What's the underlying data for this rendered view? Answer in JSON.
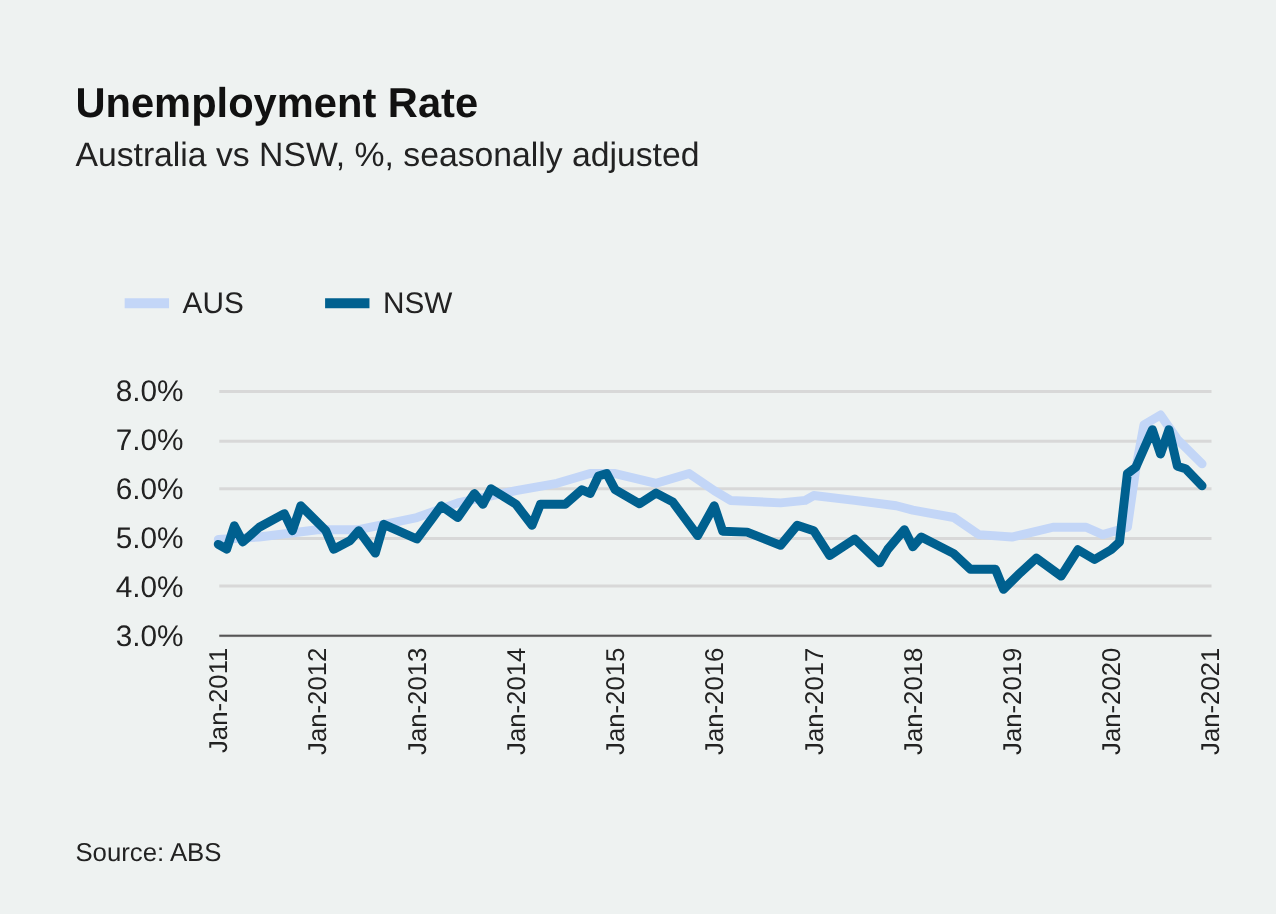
{
  "chart_data": {
    "type": "line",
    "title": "Unemployment Rate",
    "subtitle": "Australia vs NSW, %, seasonally adjusted",
    "annotations": [
      "Source: ABS"
    ],
    "legend": "top left",
    "grid": "y",
    "line_style": "solid",
    "marker": "none",
    "xlim": [
      "2011-01",
      "2021-01"
    ],
    "xticks": [
      {
        "value": "2011-01",
        "label": "Jan-2011"
      },
      {
        "value": "2012-01",
        "label": "Jan-2012"
      },
      {
        "value": "2013-01",
        "label": "Jan-2013"
      },
      {
        "value": "2014-01",
        "label": "Jan-2014"
      },
      {
        "value": "2015-01",
        "label": "Jan-2015"
      },
      {
        "value": "2016-01",
        "label": "Jan-2016"
      },
      {
        "value": "2017-01",
        "label": "Jan-2017"
      },
      {
        "value": "2018-01",
        "label": "Jan-2018"
      },
      {
        "value": "2019-01",
        "label": "Jan-2019"
      },
      {
        "value": "2020-01",
        "label": "Jan-2020"
      },
      {
        "value": "2021-01",
        "label": "Jan-2021"
      }
    ],
    "ylim": [
      3,
      8
    ],
    "yticks": [
      {
        "value": 3,
        "label": "3.0%"
      },
      {
        "value": 4,
        "label": "4.0%"
      },
      {
        "value": 5,
        "label": "5.0%"
      },
      {
        "value": 6,
        "label": "6.0%"
      },
      {
        "value": 7,
        "label": "7.0%"
      },
      {
        "value": 8,
        "label": "8.0%"
      }
    ],
    "series": [
      {
        "name": "AUS",
        "color": "#c3d6f7",
        "x": [
          "2011-01",
          "2011-06",
          "2012-01",
          "2012-06",
          "2013-01",
          "2013-06",
          "2014-01",
          "2014-06",
          "2014-10",
          "2015-01",
          "2015-06",
          "2015-10",
          "2016-01",
          "2016-03",
          "2016-09",
          "2016-12",
          "2017-01",
          "2017-06",
          "2017-11",
          "2018-01",
          "2018-06",
          "2018-09",
          "2019-01",
          "2019-06",
          "2019-10",
          "2019-12",
          "2020-02",
          "2020-03",
          "2020-04",
          "2020-05",
          "2020-07",
          "2020-09",
          "2020-12"
        ],
        "values": [
          4.95,
          5.0,
          5.15,
          5.15,
          5.4,
          5.7,
          5.95,
          6.1,
          6.3,
          6.3,
          6.1,
          6.3,
          5.95,
          5.75,
          5.7,
          5.75,
          5.85,
          5.75,
          5.64,
          5.55,
          5.4,
          5.05,
          5.0,
          5.2,
          5.2,
          5.05,
          5.15,
          5.2,
          6.4,
          7.3,
          7.5,
          7.0,
          6.5
        ]
      },
      {
        "name": "NSW",
        "color": "#00608f",
        "x": [
          "2011-01",
          "2011-02",
          "2011-03",
          "2011-04",
          "2011-06",
          "2011-09",
          "2011-10",
          "2011-11",
          "2012-02",
          "2012-03",
          "2012-05",
          "2012-06",
          "2012-08",
          "2012-09",
          "2013-01",
          "2013-03",
          "2013-04",
          "2013-06",
          "2013-08",
          "2013-09",
          "2013-10",
          "2014-01",
          "2014-03",
          "2014-04",
          "2014-07",
          "2014-09",
          "2014-10",
          "2014-11",
          "2014-12",
          "2015-01",
          "2015-04",
          "2015-06",
          "2015-08",
          "2015-11",
          "2016-01",
          "2016-02",
          "2016-05",
          "2016-09",
          "2016-11",
          "2017-01",
          "2017-03",
          "2017-06",
          "2017-09",
          "2017-10",
          "2017-12",
          "2018-01",
          "2018-02",
          "2018-06",
          "2018-08",
          "2018-11",
          "2018-12",
          "2019-02",
          "2019-04",
          "2019-07",
          "2019-09",
          "2019-11",
          "2020-01",
          "2020-02",
          "2020-03",
          "2020-04",
          "2020-06",
          "2020-07",
          "2020-08",
          "2020-09",
          "2020-10",
          "2020-12"
        ],
        "values": [
          4.85,
          4.75,
          5.23,
          4.9,
          5.2,
          5.48,
          5.13,
          5.64,
          5.13,
          4.75,
          4.93,
          5.13,
          4.67,
          5.26,
          4.96,
          5.4,
          5.64,
          5.4,
          5.89,
          5.67,
          5.99,
          5.67,
          5.24,
          5.67,
          5.67,
          5.97,
          5.89,
          6.25,
          6.3,
          5.97,
          5.68,
          5.9,
          5.72,
          5.03,
          5.64,
          5.12,
          5.1,
          4.83,
          5.24,
          5.13,
          4.62,
          4.96,
          4.47,
          4.75,
          5.15,
          4.8,
          5.0,
          4.66,
          4.34,
          4.34,
          3.93,
          4.27,
          4.57,
          4.2,
          4.74,
          4.54,
          4.74,
          4.9,
          6.3,
          6.43,
          7.2,
          6.7,
          7.2,
          6.45,
          6.4,
          6.05
        ]
      }
    ]
  }
}
